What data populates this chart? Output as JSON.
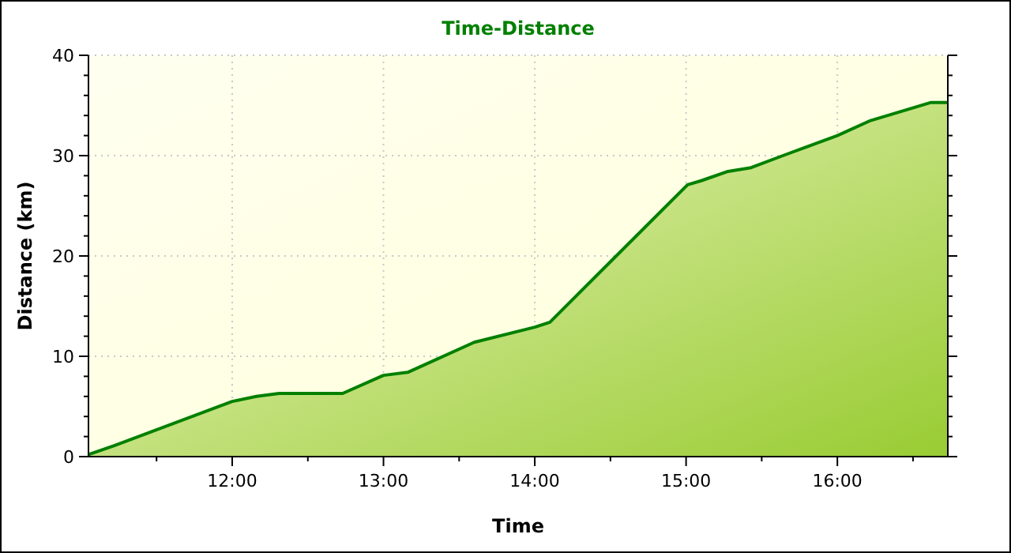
{
  "chart_data": {
    "type": "area",
    "title": "Time-Distance",
    "xlabel": "Time",
    "ylabel": "Distance (km)",
    "xlim": [
      11.05,
      16.73
    ],
    "ylim": [
      0,
      40
    ],
    "xticks": [
      {
        "value": 11.5,
        "label": null
      },
      {
        "value": 12,
        "label": "12:00"
      },
      {
        "value": 12.5,
        "label": null
      },
      {
        "value": 13,
        "label": "13:00"
      },
      {
        "value": 13.5,
        "label": null
      },
      {
        "value": 14,
        "label": "14:00"
      },
      {
        "value": 14.5,
        "label": null
      },
      {
        "value": 15,
        "label": "15:00"
      },
      {
        "value": 15.5,
        "label": null
      },
      {
        "value": 16,
        "label": "16:00"
      },
      {
        "value": 16.5,
        "label": null
      }
    ],
    "yticks": [
      0,
      {
        "value": 2,
        "label": null
      },
      {
        "value": 4,
        "label": null
      },
      {
        "value": 6,
        "label": null
      },
      {
        "value": 8,
        "label": null
      },
      10,
      {
        "value": 12,
        "label": null
      },
      {
        "value": 14,
        "label": null
      },
      {
        "value": 16,
        "label": null
      },
      {
        "value": 18,
        "label": null
      },
      20,
      {
        "value": 22,
        "label": null
      },
      {
        "value": 24,
        "label": null
      },
      {
        "value": 26,
        "label": null
      },
      {
        "value": 28,
        "label": null
      },
      30,
      {
        "value": 32,
        "label": null
      },
      {
        "value": 34,
        "label": null
      },
      {
        "value": 36,
        "label": null
      },
      {
        "value": 38,
        "label": null
      },
      40
    ],
    "grid": true,
    "x": [
      11.05,
      11.22,
      12.0,
      12.16,
      12.31,
      12.73,
      13.0,
      13.16,
      13.6,
      14.0,
      14.1,
      15.01,
      15.1,
      15.27,
      15.43,
      15.64,
      16.0,
      16.22,
      16.62,
      16.73
    ],
    "series": [
      {
        "color": "#008000",
        "values": [
          0.2,
          1.1,
          5.5,
          6.0,
          6.3,
          6.3,
          8.1,
          8.4,
          11.4,
          12.9,
          13.4,
          27.1,
          27.5,
          28.4,
          28.8,
          30.0,
          32.0,
          33.5,
          35.3,
          35.3
        ]
      }
    ]
  }
}
